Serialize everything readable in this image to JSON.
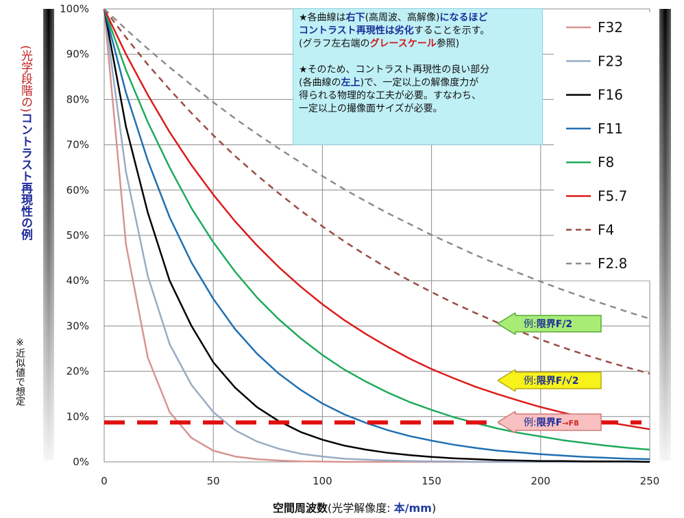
{
  "chart_data": {
    "type": "line",
    "x": [
      0,
      10,
      20,
      30,
      40,
      50,
      60,
      70,
      80,
      90,
      100,
      110,
      120,
      130,
      140,
      150,
      160,
      170,
      180,
      190,
      200,
      210,
      220,
      230,
      240,
      250
    ],
    "series": [
      {
        "name": "F32",
        "color": "#d69491",
        "dash": false,
        "values": [
          100,
          48.0,
          23.0,
          11.0,
          5.3,
          2.5,
          1.2,
          0.6,
          0.3,
          0.1,
          0.07,
          0,
          0,
          0,
          0,
          0,
          0,
          0,
          0,
          0,
          0,
          0,
          0,
          0,
          0,
          0
        ]
      },
      {
        "name": "F23",
        "color": "#98acc4",
        "dash": false,
        "values": [
          100,
          64.0,
          41.0,
          26.0,
          17.0,
          11.0,
          7.0,
          4.5,
          2.9,
          1.8,
          1.2,
          0.7,
          0.5,
          0.3,
          0.2,
          0.1,
          0.1,
          0,
          0,
          0,
          0,
          0,
          0,
          0,
          0,
          0
        ]
      },
      {
        "name": "F16",
        "color": "#000000",
        "dash": false,
        "values": [
          100,
          74.0,
          55.0,
          40.0,
          30.0,
          22.0,
          16.4,
          12.1,
          9.0,
          6.6,
          4.9,
          3.6,
          2.7,
          2.0,
          1.5,
          1.1,
          0.8,
          0.6,
          0.4,
          0.3,
          0.2,
          0.2,
          0.1,
          0.1,
          0.1,
          0
        ]
      },
      {
        "name": "F11",
        "color": "#1f6fb2",
        "dash": false,
        "values": [
          100,
          81.5,
          66.5,
          54.0,
          44.0,
          36.0,
          29.3,
          23.9,
          19.5,
          15.9,
          12.9,
          10.5,
          8.6,
          7.0,
          5.7,
          4.7,
          3.8,
          3.1,
          2.5,
          2.1,
          1.7,
          1.4,
          1.1,
          0.9,
          0.7,
          0.6
        ]
      },
      {
        "name": "F8",
        "color": "#1eaa5a",
        "dash": false,
        "values": [
          100,
          86.5,
          75.0,
          65.0,
          56.0,
          48.5,
          42.0,
          36.3,
          31.5,
          27.3,
          23.6,
          20.4,
          17.7,
          15.3,
          13.2,
          11.5,
          9.9,
          8.6,
          7.4,
          6.4,
          5.6,
          4.8,
          4.2,
          3.6,
          3.1,
          2.7
        ]
      },
      {
        "name": "F5.7",
        "color": "#dd1a1a",
        "dash": false,
        "values": [
          100,
          90.0,
          81.0,
          72.8,
          65.5,
          59.0,
          53.1,
          47.8,
          43.0,
          38.7,
          34.8,
          31.3,
          28.2,
          25.4,
          22.8,
          20.5,
          18.5,
          16.6,
          15.0,
          13.5,
          12.1,
          10.9,
          9.8,
          8.8,
          8.0,
          7.2
        ]
      },
      {
        "name": "F4",
        "color": "#9a4a44",
        "dash": true,
        "values": [
          100,
          93.7,
          87.7,
          82.2,
          77.0,
          72.1,
          67.5,
          63.3,
          59.3,
          55.5,
          52.0,
          48.7,
          45.6,
          42.7,
          40.0,
          37.5,
          35.1,
          32.9,
          30.8,
          28.9,
          27.0,
          25.3,
          23.7,
          22.2,
          20.8,
          19.5
        ]
      },
      {
        "name": "F2.8",
        "color": "#8c8c8c",
        "dash": true,
        "values": [
          100,
          95.5,
          91.2,
          87.1,
          83.2,
          79.4,
          75.8,
          72.4,
          69.2,
          66.1,
          63.1,
          60.2,
          57.5,
          54.9,
          52.5,
          50.1,
          47.9,
          45.7,
          43.7,
          41.7,
          39.8,
          38.0,
          36.3,
          34.7,
          33.1,
          31.6
        ]
      }
    ],
    "threshold": {
      "value": 8.7,
      "color": "#e01010"
    },
    "xlim": [
      0,
      250
    ],
    "ylim": [
      0,
      100
    ],
    "xticks": [
      "0",
      "50",
      "100",
      "150",
      "200",
      "250"
    ],
    "yticks": [
      "0%",
      "10%",
      "20%",
      "30%",
      "40%",
      "50%",
      "60%",
      "70%",
      "80%",
      "90%",
      "100%"
    ],
    "grid": true,
    "legend_position": "top-right",
    "xlabel_main": "空間周波数",
    "xlabel_paren_open": "(光学解像度: ",
    "xlabel_unit": "本/mm",
    "xlabel_paren_close": ")",
    "ylabel_prefix": "(光学段階の)",
    "ylabel_main": "コントラスト再現性の例",
    "ylabel_note": "※近似値で想定"
  },
  "note": {
    "line1_star": "★各曲線は",
    "line1_b1": "右下",
    "line1_mid": "(高周波、高解像)",
    "line1_b2": "になるほど",
    "line2_b": "コントラスト再現性は劣化",
    "line2_rest": "することを示す。",
    "line3_pre": "(グラフ左右端の",
    "line3_r": "グレースケール",
    "line3_post": "参照)",
    "line4": "★そのため、コントラスト再現性の良い部分",
    "line5_pre": "(各曲線の",
    "line5_b": "左上",
    "line5_post": ")で、一定以上の解像度力が",
    "line6": "得られる物理的な工夫が必要。すなわち、",
    "line7": "一定以上の撮像面サイズが必要。"
  },
  "arrows": [
    {
      "ex": "例:",
      "label": "限界F/2",
      "small": "",
      "fill": "#a8ec76",
      "stroke": "#5aa838"
    },
    {
      "ex": "例:",
      "label": "限界F/√2",
      "small": "",
      "fill": "#f6f21a",
      "stroke": "#b8a810"
    },
    {
      "ex": "例:",
      "label": "限界F",
      "small": "→F8",
      "fill": "#f8c0c0",
      "stroke": "#d07878"
    }
  ]
}
